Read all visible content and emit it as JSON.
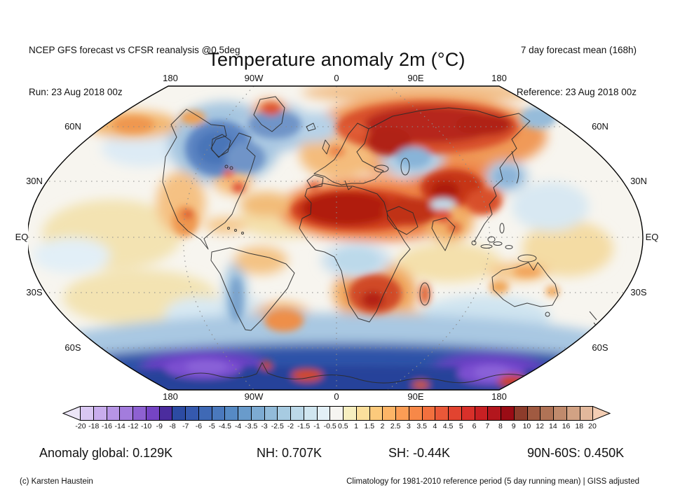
{
  "header": {
    "left_line1": "NCEP GFS forecast vs CFSR reanalysis @0.5deg",
    "left_line2": "Run: 23 Aug 2018 00z",
    "right_line1": "7 day forecast mean (168h)",
    "right_line2": "Reference: 23 Aug 2018 00z"
  },
  "title": "Temperature anomaly 2m (°C)",
  "map": {
    "projection": "robinson-world",
    "lon_labels_top": [
      "180",
      "90W",
      "0",
      "90E",
      "180"
    ],
    "lon_labels_bottom": [
      "180",
      "90W",
      "0",
      "90E",
      "180"
    ],
    "lat_labels_left": [
      "60N",
      "30N",
      "EQ",
      "30S",
      "60S"
    ],
    "lat_labels_right": [
      "60N",
      "30N",
      "EQ",
      "30S",
      "60S"
    ]
  },
  "colorbar": {
    "tick_labels": [
      "-20",
      "-18",
      "-16",
      "-14",
      "-12",
      "-10",
      "-9",
      "-8",
      "-7",
      "-6",
      "-5",
      "-4.5",
      "-4",
      "-3.5",
      "-3",
      "-2.5",
      "-2",
      "-1.5",
      "-1",
      "-0.5",
      "0.5",
      "1",
      "1.5",
      "2",
      "2.5",
      "3",
      "3.5",
      "4",
      "4.5",
      "5",
      "6",
      "7",
      "8",
      "9",
      "10",
      "12",
      "14",
      "16",
      "18",
      "20"
    ],
    "segment_colors": [
      "#d9c7f2",
      "#c9aded",
      "#b795e5",
      "#a37cdd",
      "#8e61d2",
      "#7544c4",
      "#4b2c9e",
      "#2c4ba3",
      "#3559ae",
      "#3f69b5",
      "#4a79bd",
      "#568ac4",
      "#699bcb",
      "#7dabd2",
      "#92bbd9",
      "#a7cbe1",
      "#bcd9e9",
      "#d0e6f0",
      "#e3f0f7",
      "#f6f5f1",
      "#f7efc0",
      "#fbdf9c",
      "#fcca7c",
      "#fdb567",
      "#fb9d55",
      "#f78848",
      "#f2703e",
      "#ea5838",
      "#e24430",
      "#d8302a",
      "#c82023",
      "#b3161d",
      "#9a0c15",
      "#8d3c2b",
      "#a05a41",
      "#b07356",
      "#c08a6c",
      "#d2a284",
      "#e2b89c"
    ],
    "left_arrow_color": "#ece6f7",
    "right_arrow_color": "#f3cdb3"
  },
  "stats": {
    "global": "Anomaly global: 0.129K",
    "nh": "NH: 0.707K",
    "sh": "SH: -0.44K",
    "band": "90N-60S: 0.450K"
  },
  "footer": {
    "left": "(c) Karsten Haustein",
    "right": "Climatology for 1981-2010 reference period (5 day running mean) | GISS adjusted"
  },
  "chart_data": {
    "type": "heatmap",
    "title": "Temperature anomaly 2m (°C)",
    "units": "°C",
    "colorbar_levels": [
      -20,
      -18,
      -16,
      -14,
      -12,
      -10,
      -9,
      -8,
      -7,
      -6,
      -5,
      -4.5,
      -4,
      -3.5,
      -3,
      -2.5,
      -2,
      -1.5,
      -1,
      -0.5,
      0.5,
      1,
      1.5,
      2,
      2.5,
      3,
      3.5,
      4,
      4.5,
      5,
      6,
      7,
      8,
      9,
      10,
      12,
      14,
      16,
      18,
      20
    ],
    "legend_position": "bottom",
    "stats": {
      "global_K": 0.129,
      "nh_K": 0.707,
      "sh_K": -0.44,
      "band_90N_60S_K": 0.45
    }
  }
}
